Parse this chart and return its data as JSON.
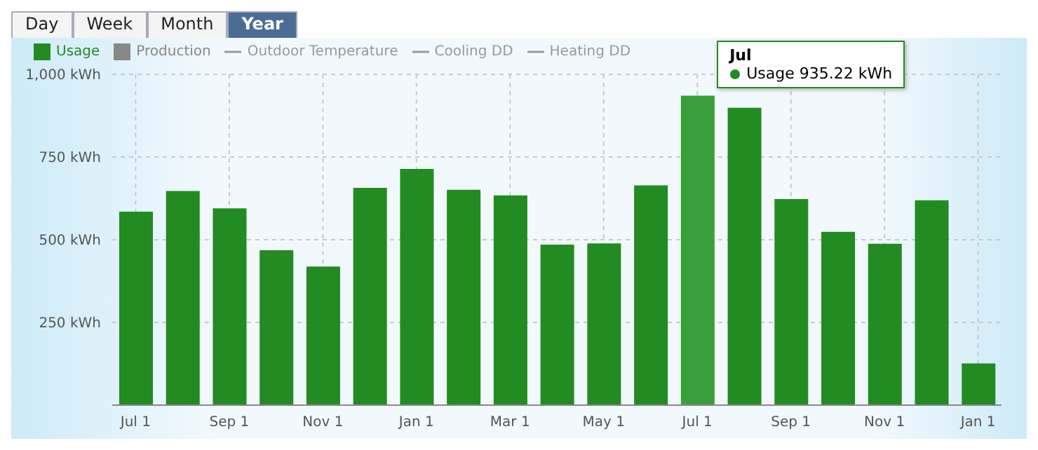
{
  "chart_data": {
    "type": "bar",
    "categories": [
      "Jul 1",
      null,
      "Sep 1",
      null,
      "Nov 1",
      null,
      "Jan 1",
      null,
      "Mar 1",
      null,
      "May 1",
      null,
      "Jul 1",
      null,
      "Sep 1",
      null,
      "Nov 1",
      null,
      "Jan 1"
    ],
    "series": [
      {
        "name": "Usage",
        "color": "#228b22",
        "colors": [
          "#228b22",
          "#228b22",
          "#228b22",
          "#228b22",
          "#228b22",
          "#228b22",
          "#228b22",
          "#228b22",
          "#228b22",
          "#228b22",
          "#228b22",
          "#228b22",
          "#3a9e3a",
          "#228b22",
          "#228b22",
          "#228b22",
          "#228b22",
          "#228b22",
          "#228b22"
        ],
        "values": [
          585,
          647,
          595,
          468,
          419,
          657,
          714,
          651,
          634,
          485,
          489,
          664,
          935.22,
          899,
          623,
          524,
          488,
          619,
          126
        ]
      },
      {
        "name": "Production",
        "type": "bar",
        "color": "#888888",
        "values": [
          null,
          null,
          null,
          null,
          null,
          null,
          null,
          null,
          null,
          null,
          null,
          null,
          null,
          null,
          null,
          null,
          null,
          null,
          null
        ]
      },
      {
        "name": "Outdoor Temperature",
        "type": "line",
        "color": "#999999",
        "values": [
          null,
          null,
          null,
          null,
          null,
          null,
          null,
          null,
          null,
          null,
          null,
          null,
          null,
          null,
          null,
          null,
          null,
          null,
          null
        ]
      },
      {
        "name": "Cooling DD",
        "type": "line",
        "color": "#999999",
        "values": [
          null,
          null,
          null,
          null,
          null,
          null,
          null,
          null,
          null,
          null,
          null,
          null,
          null,
          null,
          null,
          null,
          null,
          null,
          null
        ]
      },
      {
        "name": "Heating DD",
        "type": "line",
        "color": "#999999",
        "values": [
          null,
          null,
          null,
          null,
          null,
          null,
          null,
          null,
          null,
          null,
          null,
          null,
          null,
          null,
          null,
          null,
          null,
          null,
          null
        ]
      }
    ],
    "ylim": [
      0,
      1000
    ],
    "yticks": [
      {
        "value": 0,
        "label": null
      },
      {
        "value": 250,
        "label": "250 kWh"
      },
      {
        "value": 500,
        "label": "500 kWh"
      },
      {
        "value": 750,
        "label": "750 kWh"
      },
      {
        "value": 1000,
        "label": "1,000 kWh"
      }
    ],
    "grid": true,
    "legend": "top left",
    "annotations": [
      "Day",
      "Week",
      "Month",
      "Year",
      "Jul",
      "Usage 935.22 kWh"
    ]
  }
}
